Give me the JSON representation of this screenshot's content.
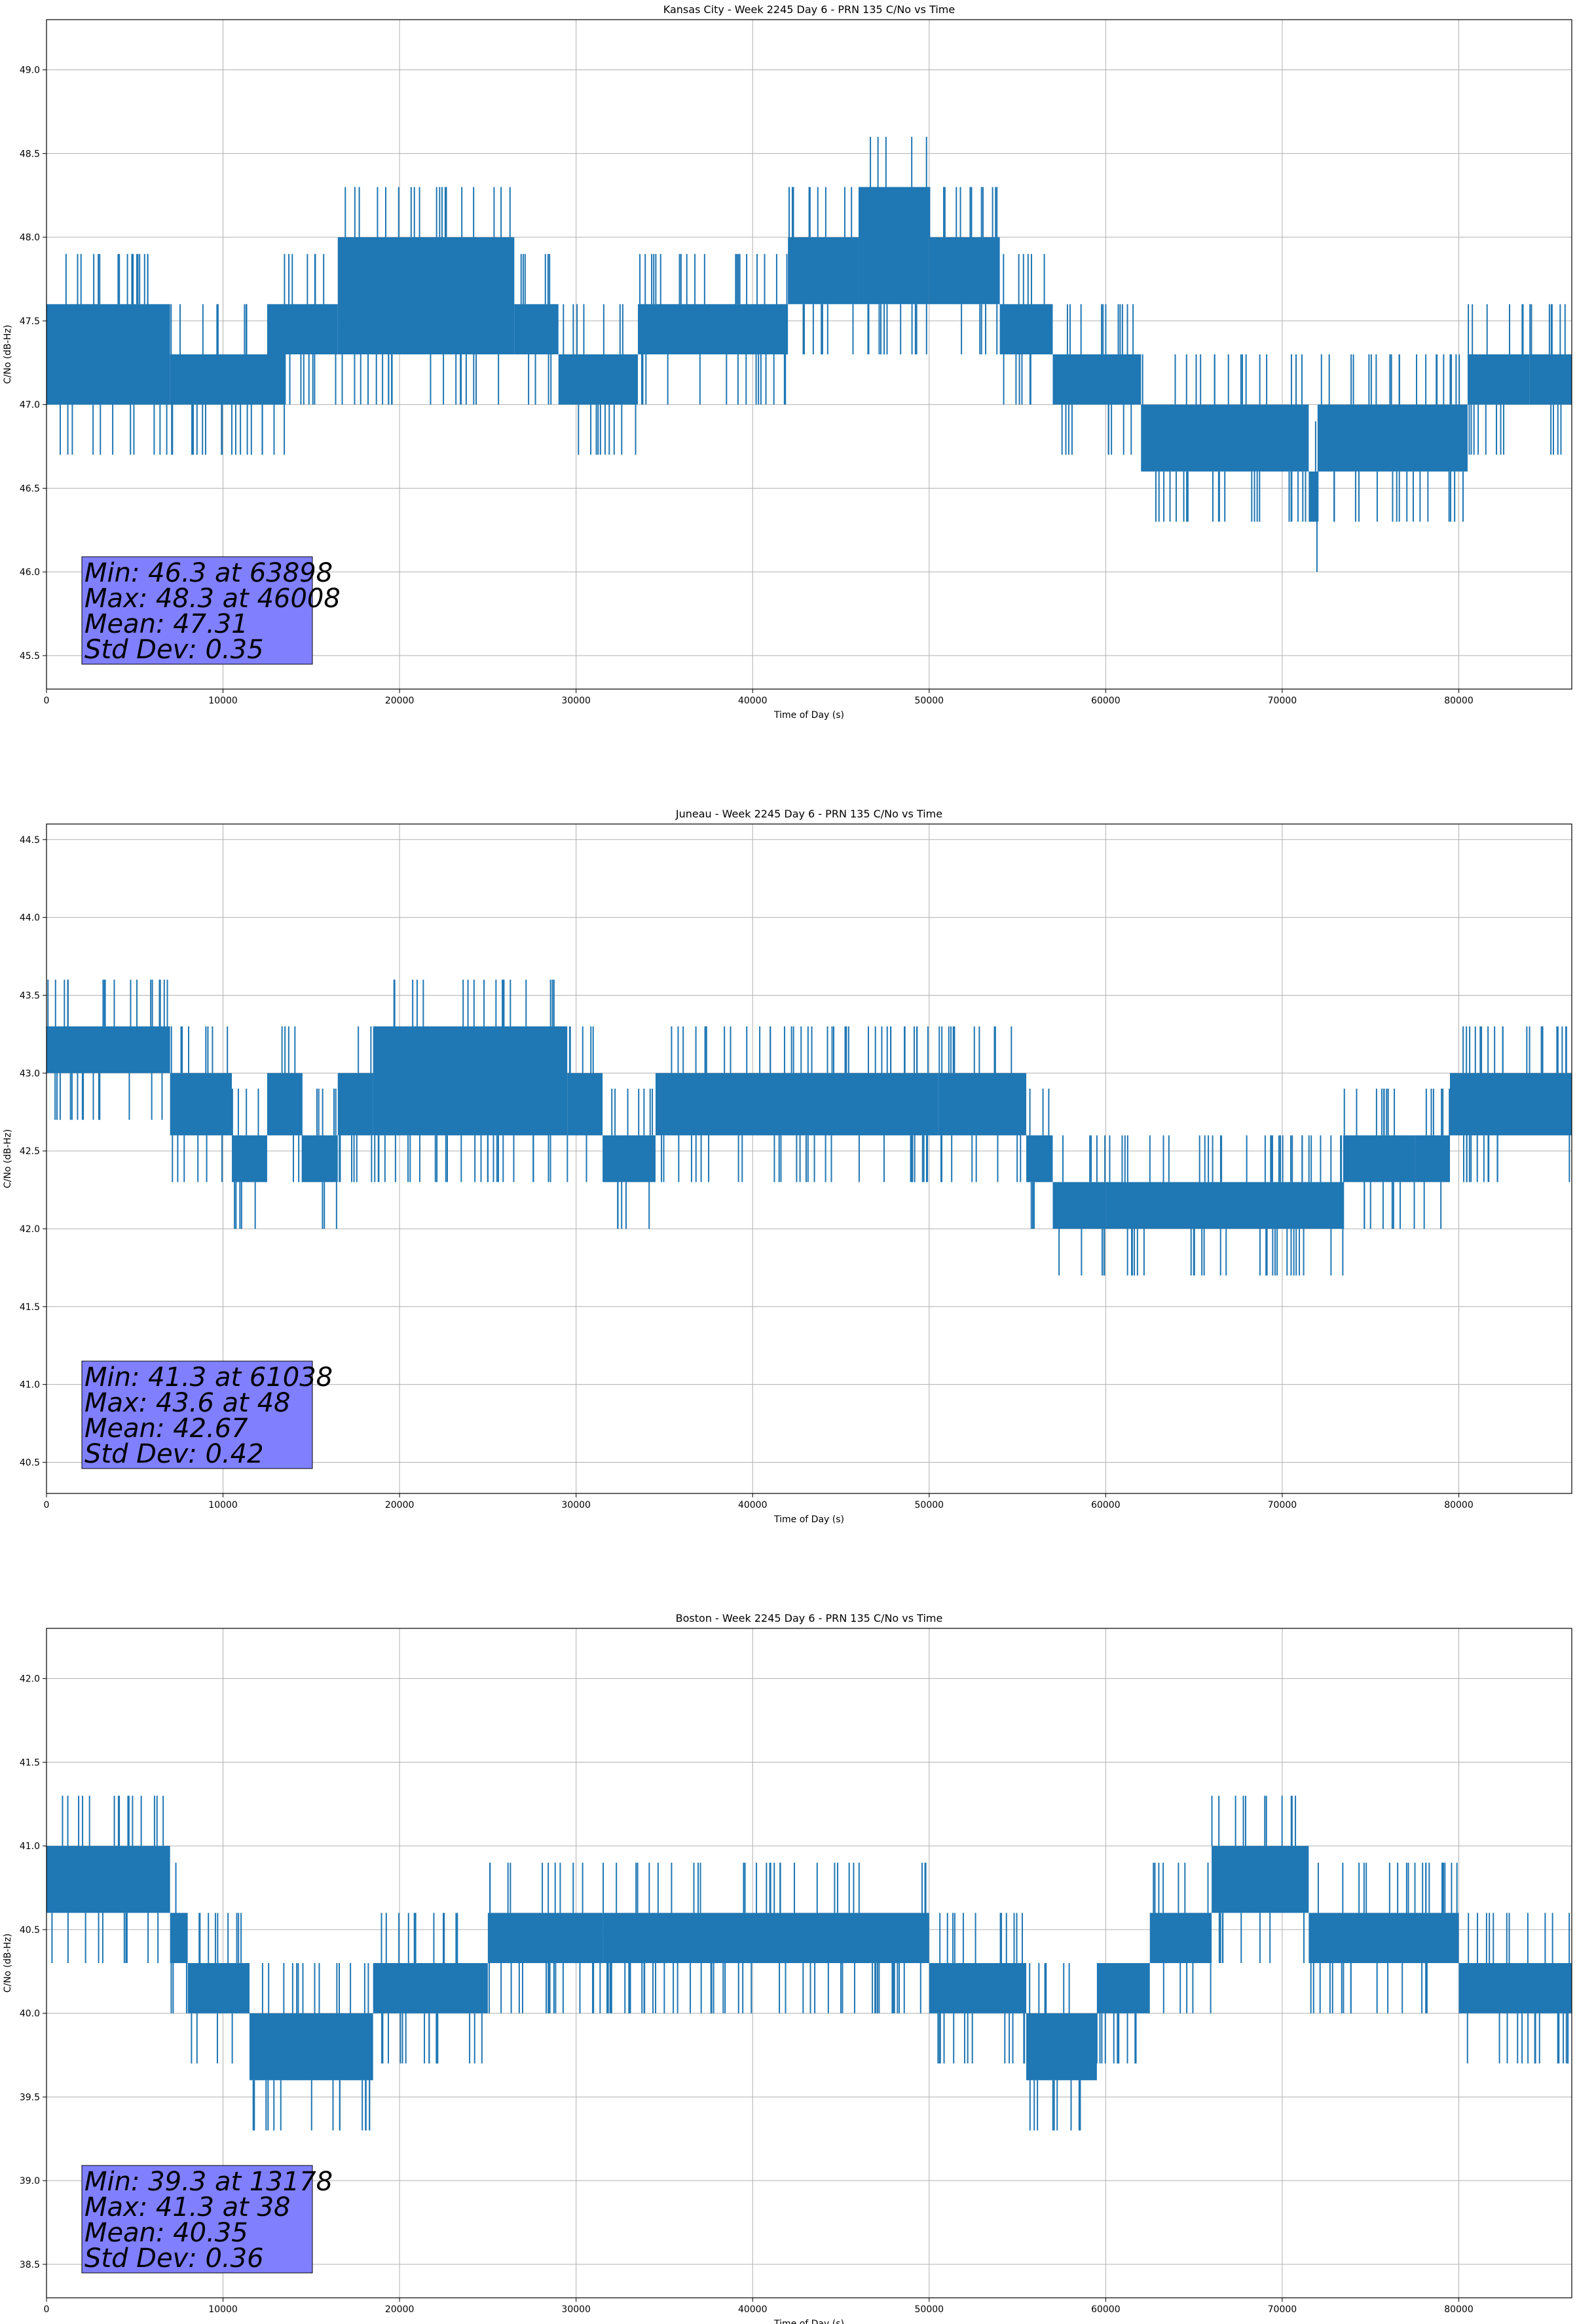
{
  "chart_data": [
    {
      "type": "line",
      "title": "Kansas City - Week 2245 Day 6 - PRN 135 C/No vs Time",
      "xlabel": "Time of Day (s)",
      "ylabel": "C/No (dB-Hz)",
      "xlim": [
        0,
        86400
      ],
      "ylim": [
        45.3,
        49.3
      ],
      "xticks": [
        0,
        10000,
        20000,
        30000,
        40000,
        50000,
        60000,
        70000,
        80000
      ],
      "yticks": [
        "45.5",
        "46.0",
        "46.5",
        "47.0",
        "47.5",
        "48.0",
        "48.5",
        "49.0"
      ],
      "grid": true,
      "color": "#1f77b4",
      "bands": [
        {
          "x": [
            0,
            7000
          ],
          "low": 47.0,
          "high": 47.6
        },
        {
          "x": [
            7000,
            13500
          ],
          "low": 47.0,
          "high": 47.3
        },
        {
          "x": [
            12500,
            16500
          ],
          "low": 47.3,
          "high": 47.6
        },
        {
          "x": [
            16500,
            26500
          ],
          "low": 47.3,
          "high": 48.0
        },
        {
          "x": [
            26500,
            29000
          ],
          "low": 47.3,
          "high": 47.6
        },
        {
          "x": [
            29000,
            33500
          ],
          "low": 47.0,
          "high": 47.3
        },
        {
          "x": [
            33500,
            42000
          ],
          "low": 47.3,
          "high": 47.6
        },
        {
          "x": [
            42000,
            46000
          ],
          "low": 47.6,
          "high": 48.0
        },
        {
          "x": [
            46000,
            50000
          ],
          "low": 47.6,
          "high": 48.3
        },
        {
          "x": [
            50000,
            54000
          ],
          "low": 47.6,
          "high": 48.0
        },
        {
          "x": [
            54000,
            57000
          ],
          "low": 47.3,
          "high": 47.6
        },
        {
          "x": [
            57000,
            62000
          ],
          "low": 47.0,
          "high": 47.3
        },
        {
          "x": [
            62000,
            71500
          ],
          "low": 46.6,
          "high": 47.0
        },
        {
          "x": [
            71500,
            72000
          ],
          "low": 46.3,
          "high": 46.6
        },
        {
          "x": [
            72000,
            80500
          ],
          "low": 46.6,
          "high": 47.0
        },
        {
          "x": [
            80500,
            84000
          ],
          "low": 47.0,
          "high": 47.3
        },
        {
          "x": [
            84000,
            86400
          ],
          "low": 47.0,
          "high": 47.3
        }
      ],
      "stats": {
        "min": "Min: 46.3 at 63898",
        "max": "Max: 48.3 at 46008",
        "mean": "Mean: 47.31",
        "std": "Std Dev: 0.35"
      }
    },
    {
      "type": "line",
      "title": "Juneau - Week 2245 Day 6 - PRN 135 C/No vs Time",
      "xlabel": "Time of Day (s)",
      "ylabel": "C/No (dB-Hz)",
      "xlim": [
        0,
        86400
      ],
      "ylim": [
        40.3,
        44.6
      ],
      "xticks": [
        0,
        10000,
        20000,
        30000,
        40000,
        50000,
        60000,
        70000,
        80000
      ],
      "yticks": [
        "40.5",
        "41.0",
        "41.5",
        "42.0",
        "42.5",
        "43.0",
        "43.5",
        "44.0",
        "44.5"
      ],
      "grid": true,
      "color": "#1f77b4",
      "bands": [
        {
          "x": [
            0,
            7000
          ],
          "low": 43.0,
          "high": 43.3
        },
        {
          "x": [
            7000,
            10500
          ],
          "low": 42.6,
          "high": 43.0
        },
        {
          "x": [
            10500,
            12500
          ],
          "low": 42.3,
          "high": 42.6
        },
        {
          "x": [
            12500,
            14500
          ],
          "low": 42.6,
          "high": 43.0
        },
        {
          "x": [
            14500,
            16500
          ],
          "low": 42.3,
          "high": 42.6
        },
        {
          "x": [
            16500,
            18500
          ],
          "low": 42.6,
          "high": 43.0
        },
        {
          "x": [
            18500,
            29500
          ],
          "low": 42.6,
          "high": 43.3
        },
        {
          "x": [
            29500,
            31500
          ],
          "low": 42.6,
          "high": 43.0
        },
        {
          "x": [
            31500,
            34500
          ],
          "low": 42.3,
          "high": 42.6
        },
        {
          "x": [
            34500,
            50500
          ],
          "low": 42.6,
          "high": 43.0
        },
        {
          "x": [
            50500,
            55500
          ],
          "low": 42.6,
          "high": 43.0
        },
        {
          "x": [
            55500,
            57000
          ],
          "low": 42.3,
          "high": 42.6
        },
        {
          "x": [
            57000,
            60000
          ],
          "low": 42.0,
          "high": 42.3
        },
        {
          "x": [
            60000,
            73500
          ],
          "low": 42.0,
          "high": 42.3
        },
        {
          "x": [
            73500,
            77500
          ],
          "low": 42.3,
          "high": 42.6
        },
        {
          "x": [
            77500,
            79500
          ],
          "low": 42.3,
          "high": 42.6
        },
        {
          "x": [
            79500,
            86400
          ],
          "low": 42.6,
          "high": 43.0
        }
      ],
      "stats": {
        "min": "Min: 41.3 at 61038",
        "max": "Max: 43.6 at 48",
        "mean": "Mean: 42.67",
        "std": "Std Dev: 0.42"
      }
    },
    {
      "type": "line",
      "title": "Boston - Week 2245 Day 6 - PRN 135 C/No vs Time",
      "xlabel": "Time of Day (s)",
      "ylabel": "C/No (dB-Hz)",
      "xlim": [
        0,
        86400
      ],
      "ylim": [
        38.3,
        42.3
      ],
      "xticks": [
        0,
        10000,
        20000,
        30000,
        40000,
        50000,
        60000,
        70000,
        80000
      ],
      "yticks": [
        "38.5",
        "39.0",
        "39.5",
        "40.0",
        "40.5",
        "41.0",
        "41.5",
        "42.0"
      ],
      "grid": true,
      "color": "#1f77b4",
      "bands": [
        {
          "x": [
            0,
            7000
          ],
          "low": 40.6,
          "high": 41.0
        },
        {
          "x": [
            7000,
            8000
          ],
          "low": 40.3,
          "high": 40.6
        },
        {
          "x": [
            8000,
            11500
          ],
          "low": 40.0,
          "high": 40.3
        },
        {
          "x": [
            11500,
            18500
          ],
          "low": 39.6,
          "high": 40.0
        },
        {
          "x": [
            18500,
            25000
          ],
          "low": 40.0,
          "high": 40.3
        },
        {
          "x": [
            25000,
            31500
          ],
          "low": 40.3,
          "high": 40.6
        },
        {
          "x": [
            31500,
            50000
          ],
          "low": 40.3,
          "high": 40.6
        },
        {
          "x": [
            50000,
            55500
          ],
          "low": 40.0,
          "high": 40.3
        },
        {
          "x": [
            55500,
            59500
          ],
          "low": 39.6,
          "high": 40.0
        },
        {
          "x": [
            59500,
            62500
          ],
          "low": 40.0,
          "high": 40.3
        },
        {
          "x": [
            62500,
            66000
          ],
          "low": 40.3,
          "high": 40.6
        },
        {
          "x": [
            66000,
            71500
          ],
          "low": 40.6,
          "high": 41.0
        },
        {
          "x": [
            71500,
            80000
          ],
          "low": 40.3,
          "high": 40.6
        },
        {
          "x": [
            80000,
            86400
          ],
          "low": 40.0,
          "high": 40.3
        }
      ],
      "stats": {
        "min": "Min: 39.3 at 13178",
        "max": "Max: 41.3 at 38",
        "mean": "Mean: 40.35",
        "std": "Std Dev: 0.36"
      }
    }
  ]
}
